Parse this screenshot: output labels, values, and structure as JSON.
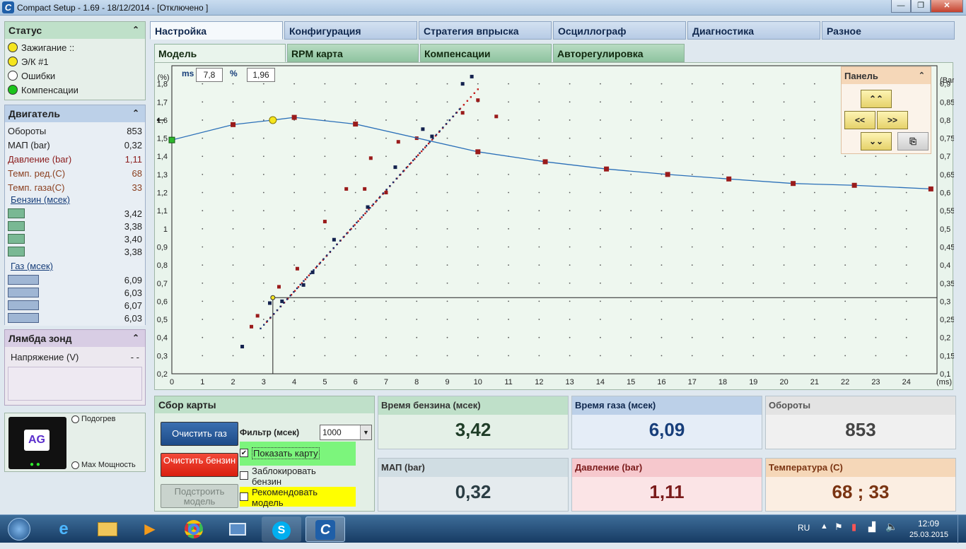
{
  "window": {
    "title": "Compact Setup - 1.69 - 18/12/2014 - [Отключено ]",
    "buttons": [
      "—",
      "❐",
      "✕"
    ]
  },
  "status": {
    "title": "Статус",
    "items": [
      {
        "label": "Зажигание ::",
        "color": "#f5e51e"
      },
      {
        "label": "Э/К #1",
        "color": "#f5e51e"
      },
      {
        "label": "Ошибки",
        "color": "#ffffff"
      },
      {
        "label": "Компенсации",
        "color": "#1cc41c"
      }
    ]
  },
  "engine": {
    "title": "Двигатель",
    "rows": [
      {
        "label": "Обороты",
        "value": "853"
      },
      {
        "label": "МАП (bar)",
        "value": "0,32"
      },
      {
        "label": "Давление (bar)",
        "value": "1,11"
      },
      {
        "label": "Темп. ред.(С)",
        "value": "68"
      },
      {
        "label": "Темп. газа(С)",
        "value": "33"
      }
    ],
    "petrol_label": "Бензин (мсек)",
    "petrol": [
      "3,42",
      "3,38",
      "3,40",
      "3,38"
    ],
    "gas_label": "Газ (мсек)",
    "gas": [
      "6,09",
      "6,03",
      "6,07",
      "6,03"
    ]
  },
  "lambda": {
    "title": "Лямбда зонд",
    "label": "Напряжение (V)",
    "value": "- -"
  },
  "logo": {
    "text": "AG",
    "heat": "Подогрев",
    "maxpower": "Max Мощность"
  },
  "tabs": [
    "Настройка",
    "Конфигурация",
    "Стратегия впрыска",
    "Осциллограф",
    "Диагностика",
    "Разное"
  ],
  "subtabs": [
    "Модель",
    "RPM карта",
    "Компенсации",
    "Авторегулировка"
  ],
  "chart_readout": {
    "ms_label": "ms",
    "ms_value": "7,8",
    "pct_label": "%",
    "pct_value": "1,96"
  },
  "panel": {
    "title": "Панель",
    "buttons": [
      "⌃⌃",
      "<<",
      ">>",
      "⌄⌄",
      "⎘"
    ]
  },
  "sbor": {
    "title": "Сбор карты",
    "clear_gas": "Очистить газ",
    "clear_petrol": "Очистить бензин",
    "build_model": "Подстроить модель",
    "filter_label": "Фильтр (мсек)",
    "filter_value": "1000",
    "show_map": "Показать карту",
    "lock_petrol": "Заблокировать бензин",
    "recommend": "Рекомендовать модель"
  },
  "tiles": [
    {
      "label": "Время бензина (мсек)",
      "value": "3,42"
    },
    {
      "label": "Время газа (мсек)",
      "value": "6,09"
    },
    {
      "label": "Обороты",
      "value": "853"
    },
    {
      "label": "МАП (bar)",
      "value": "0,32"
    },
    {
      "label": "Давление (bar)",
      "value": "1,11"
    },
    {
      "label": "Температура (С)",
      "value": "68 ; 33"
    }
  ],
  "taskbar": {
    "lang": "RU",
    "time": "12:09",
    "date": "25.03.2015"
  },
  "chart_data": {
    "type": "line",
    "xlabel": "(ms)",
    "ylabel_left": "(%)",
    "ylabel_right": "(Bar)",
    "xlim": [
      0,
      25
    ],
    "ylim_left": [
      0.2,
      1.9
    ],
    "ylim_right": [
      0.1,
      0.95
    ],
    "x_ticks": [
      "0",
      "1",
      "2",
      "3",
      "4",
      "5",
      "6",
      "7",
      "8",
      "9",
      "10",
      "11",
      "12",
      "13",
      "14",
      "15",
      "16",
      "17",
      "18",
      "19",
      "20",
      "21",
      "22",
      "23",
      "24"
    ],
    "y_left_ticks": [
      "0,2",
      "0,3",
      "0,4",
      "0,5",
      "0,6",
      "0,7",
      "0,8",
      "0,9",
      "1",
      "1,1",
      "1,2",
      "1,3",
      "1,4",
      "1,5",
      "1,6",
      "1,7",
      "1,8"
    ],
    "y_right_ticks": [
      "0,1",
      "0,15",
      "0,2",
      "0,25",
      "0,3",
      "0,35",
      "0,4",
      "0,45",
      "0,5",
      "0,55",
      "0,6",
      "0,65",
      "0,7",
      "0,75",
      "0,8",
      "0,85",
      "0,9"
    ],
    "correction_curve": {
      "x": [
        0,
        2,
        3.3,
        4,
        6,
        10,
        12.2,
        14.2,
        16.2,
        18.2,
        20.3,
        22.3,
        24.8
      ],
      "y": [
        1.49,
        1.575,
        1.6,
        1.615,
        1.578,
        1.425,
        1.37,
        1.33,
        1.3,
        1.275,
        1.25,
        1.24,
        1.22
      ]
    },
    "cursor": {
      "x": 3.3,
      "y": 0.31
    },
    "red_trend": {
      "x": [
        3.1,
        10.0
      ],
      "y": [
        0.243,
        0.885
      ]
    },
    "blue_trend": {
      "x": [
        2.9,
        9.4
      ],
      "y": [
        0.225,
        0.83
      ]
    },
    "red_points": {
      "x": [
        2.6,
        2.8,
        3.3,
        3.5,
        4.1,
        5.0,
        5.7,
        6.3,
        6.5,
        7.0,
        7.4,
        8.0,
        9.5,
        10.0,
        10.6
      ],
      "y": [
        0.23,
        0.26,
        0.31,
        0.34,
        0.39,
        0.52,
        0.61,
        0.61,
        0.695,
        0.6,
        0.74,
        0.75,
        0.82,
        0.855,
        0.81
      ]
    },
    "blue_points": {
      "x": [
        2.3,
        3.2,
        3.6,
        4.3,
        4.6,
        5.3,
        6.4,
        7.3,
        8.2,
        8.5,
        9.5,
        9.8
      ],
      "y": [
        0.175,
        0.295,
        0.3,
        0.345,
        0.38,
        0.47,
        0.56,
        0.67,
        0.775,
        0.755,
        0.9,
        0.92
      ]
    }
  }
}
